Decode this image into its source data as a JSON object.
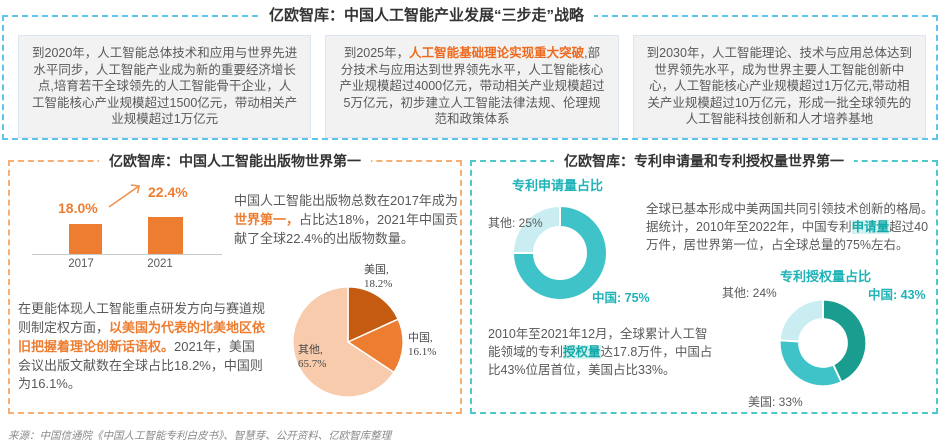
{
  "colors": {
    "blue_dash": "#5FC4EC",
    "orange_dash": "#F6AE73",
    "teal_dash": "#4FC7CC",
    "accent_orange": "#ED7D31",
    "accent_orange_red": "#ED6A1E",
    "accent_teal": "#1FB3B8",
    "pie_us": "#C55A11",
    "pie_cn": "#ED7D31",
    "pie_other": "#F8CBAD",
    "donut_teal": "#3FC3C8",
    "donut_teal_dark": "#1A9C8E",
    "donut_teal_light": "#C9EDF0",
    "body_text": "#595959",
    "box_bg": "#F2F2F2"
  },
  "top": {
    "title": "亿欧智库：中国人工智能产业发展“三步走”战略",
    "boxes": [
      {
        "prefix": "到2020年，人工智能总体技术和应用与世界先进水平同步，人工智能产业成为新的重要经济增长点,培育若干全球领先的人工智能骨干企业，人工智能核心产业规模超过1500亿元，带动相关产业规模超过1万亿元",
        "highlight": "",
        "suffix": ""
      },
      {
        "prefix": "到2025年，",
        "highlight": "人工智能基础理论实现重大突破",
        "suffix": ",部分技术与应用达到世界领先水平，人工智能核心产业规模超过4000亿元，带动相关产业规模超过5万亿元，初步建立人工智能法律法规、伦理规范和政策体系"
      },
      {
        "prefix": "到2030年，人工智能理论、技术与应用总体达到世界领先水平，成为世界主要人工智能创新中心，人工智能核心产业规模超过1万亿元,带动相关产业规模超过10万亿元，形成一批全球领先的人工智能科技创新和人才培养基地",
        "highlight": "",
        "suffix": ""
      }
    ]
  },
  "left_panel": {
    "title": "亿欧智库：中国人工智能出版物世界第一",
    "bar": {
      "value_2017": "18.0%",
      "value_2021": "22.4%",
      "year_2017": "2017",
      "year_2021": "2021"
    },
    "para1": {
      "prefix": "中国人工智能出版物总数在2017年成为",
      "highlight": "世界第一，",
      "suffix": "占比达18%，2021年中国贡献了全球22.4%的出版物数量。"
    },
    "para2": {
      "prefix": "在更能体现人工智能重点研发方向与赛道规则制定权方面，",
      "highlight": "以美国为代表的北美地区依旧把握着理论创新话语权。",
      "suffix": "2021年，美国会议出版文献数在全球占比18.2%，中国则为16.1%。"
    },
    "pie_labels": {
      "us": "美国,\n18.2%",
      "cn": "中国,\n16.1%",
      "other": "其他,\n65.7%"
    }
  },
  "right_panel": {
    "title": "亿欧智库：专利申请量和专利授权量世界第一",
    "donut1": {
      "title": "专利申请量占比",
      "label_other": "其他: 25%",
      "label_cn": "中国: 75%"
    },
    "para1": {
      "prefix": "全球已基本形成中美两国共同引领技术创新的格局。据统计，2010年至2022年，中国专利",
      "highlight": "申请量",
      "suffix": "超过40万件，居世界第一位，占全球总量的75%左右。"
    },
    "donut2": {
      "title": "专利授权量占比",
      "label_other": "其他: 24%",
      "label_cn": "中国: 43%",
      "label_us": "美国: 33%"
    },
    "para2": {
      "prefix": "2010年至2021年12月，全球累计人工智能领域的专利",
      "highlight": "授权量",
      "suffix": "达17.8万件，中国占比43%位居首位，美国占比33%。"
    }
  },
  "source": "来源：中国信通院《中国人工智能专利白皮书》、智慧芽、公开资料、亿欧智库整理",
  "chart_data": [
    {
      "type": "bar",
      "title": "亿欧智库：中国人工智能出版物世界第一（中国出版物全球占比）",
      "categories": [
        "2017",
        "2021"
      ],
      "values": [
        18.0,
        22.4
      ],
      "unit": "%",
      "data_labels": [
        "18.0%",
        "22.4%"
      ],
      "bar_color": "#ED7D31",
      "annotations": [
        "上升箭头：从18.0%指向22.4%"
      ],
      "ylim": [
        0,
        25
      ],
      "grid": false
    },
    {
      "type": "pie",
      "title": "2021年会议出版文献全球占比",
      "labels": [
        "美国",
        "中国",
        "其他"
      ],
      "values": [
        18.2,
        16.1,
        65.7
      ],
      "colors": [
        "#C55A11",
        "#ED7D31",
        "#F8CBAD"
      ],
      "legend_position": "outside-labels",
      "start": "12点方向顺时针"
    },
    {
      "type": "pie",
      "subtype": "donut",
      "title": "专利申请量占比",
      "labels": [
        "中国",
        "其他"
      ],
      "values": [
        75,
        25
      ],
      "colors": [
        "#3FC3C8",
        "#C9EDF0"
      ],
      "legend_position": "outside-labels",
      "start": "12点方向顺时针"
    },
    {
      "type": "pie",
      "subtype": "donut",
      "title": "专利授权量占比",
      "labels": [
        "中国",
        "美国",
        "其他"
      ],
      "values": [
        43,
        33,
        24
      ],
      "colors": [
        "#1A9C8E",
        "#3FC3C8",
        "#C9EDF0"
      ],
      "legend_position": "outside-labels",
      "start": "12点方向顺时针"
    }
  ]
}
